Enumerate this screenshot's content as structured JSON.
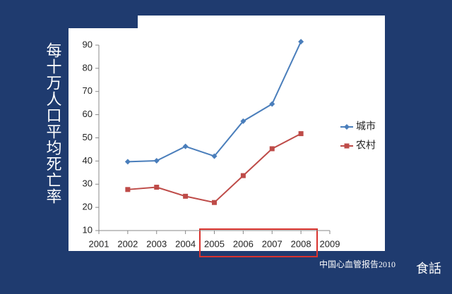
{
  "chart_data": {
    "type": "line",
    "y_label": "每十万人口平均死亡率",
    "x": [
      2002,
      2003,
      2004,
      2005,
      2006,
      2007,
      2008
    ],
    "series": [
      {
        "name": "城市",
        "color": "#4a7ebb",
        "marker": "diamond",
        "values": [
          39.7,
          40.1,
          46.3,
          42.1,
          57.2,
          64.6,
          91.5
        ]
      },
      {
        "name": "农村",
        "color": "#be4b48",
        "marker": "square",
        "values": [
          27.7,
          28.7,
          24.8,
          22.1,
          33.7,
          45.3,
          51.8
        ]
      }
    ],
    "xlim": [
      2001,
      2009
    ],
    "xticks": [
      2001,
      2002,
      2003,
      2004,
      2005,
      2006,
      2007,
      2008,
      2009
    ],
    "ylim": [
      10,
      90
    ],
    "yticks": [
      10,
      20,
      30,
      40,
      50,
      60,
      70,
      80,
      90
    ],
    "grid": false,
    "legend": "right"
  },
  "footer": "中国心血管报告2010",
  "logo": "食話"
}
